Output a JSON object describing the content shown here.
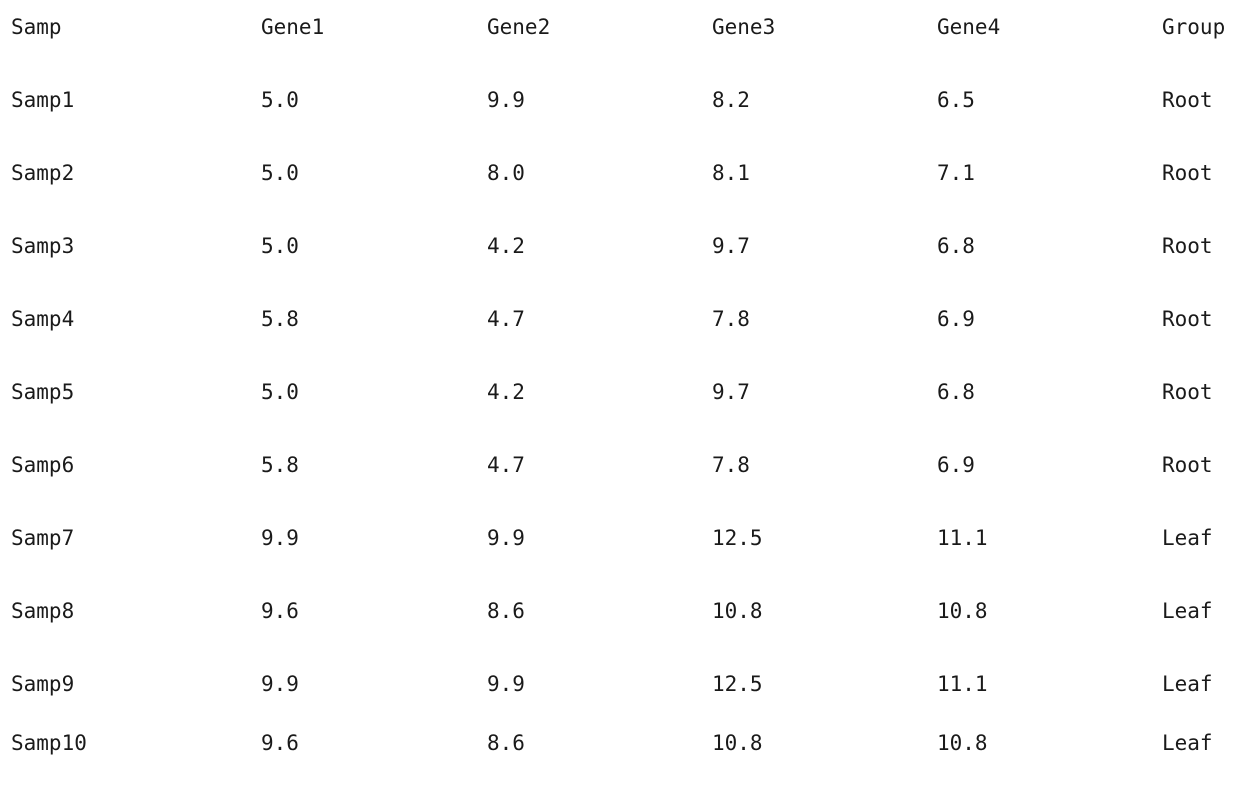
{
  "table": {
    "columns": [
      "Samp",
      "Gene1",
      "Gene2",
      "Gene3",
      "Gene4",
      "Group"
    ],
    "rows": [
      [
        "Samp1",
        "5.0",
        "9.9",
        "8.2",
        "6.5",
        "Root"
      ],
      [
        "Samp2",
        "5.0",
        "8.0",
        "8.1",
        "7.1",
        "Root"
      ],
      [
        "Samp3",
        "5.0",
        "4.2",
        "9.7",
        "6.8",
        "Root"
      ],
      [
        "Samp4",
        "5.8",
        "4.7",
        "7.8",
        "6.9",
        "Root"
      ],
      [
        "Samp5",
        "5.0",
        "4.2",
        "9.7",
        "6.8",
        "Root"
      ],
      [
        "Samp6",
        "5.8",
        "4.7",
        "7.8",
        "6.9",
        "Root"
      ],
      [
        "Samp7",
        "9.9",
        "9.9",
        "12.5",
        "11.1",
        "Leaf"
      ],
      [
        "Samp8",
        "9.6",
        "8.6",
        "10.8",
        "10.8",
        "Leaf"
      ],
      [
        "Samp9",
        "9.9",
        "9.9",
        "12.5",
        "11.1",
        "Leaf"
      ],
      [
        "Samp10",
        "9.6",
        "8.6",
        "10.8",
        "10.8",
        "Leaf"
      ]
    ]
  }
}
